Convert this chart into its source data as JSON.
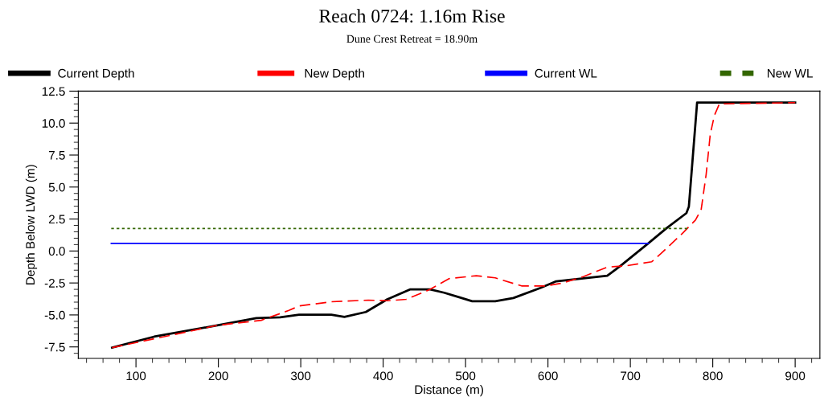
{
  "chart_data": {
    "type": "line",
    "title": "Reach 0724: 1.16m Rise",
    "subtitle": "Dune Crest Retreat = 18.90m",
    "xlabel": "Distance (m)",
    "ylabel": "Depth Below LWD (m)",
    "xlim": [
      30,
      930
    ],
    "ylim": [
      -8.4,
      12.5
    ],
    "xticks": [
      100,
      200,
      300,
      400,
      500,
      600,
      700,
      800,
      900
    ],
    "yticks": [
      {
        "value": 12.5,
        "label": "12.5"
      },
      {
        "value": 10,
        "label": "10.0"
      },
      {
        "value": 7.5,
        "label": "7.5"
      },
      {
        "value": 5,
        "label": "5.0"
      },
      {
        "value": 2.5,
        "label": "2.5"
      },
      {
        "value": 0,
        "label": "0.0"
      },
      {
        "value": -2.5,
        "label": "-2.5"
      },
      {
        "value": -5,
        "label": "-5.0"
      },
      {
        "value": -7.5,
        "label": "-7.5"
      }
    ],
    "legend": "top",
    "grid": false,
    "series": [
      {
        "name": "Current Depth",
        "color": "#000000",
        "line_style": "solid",
        "x": [
          71,
          122,
          200,
          246,
          275,
          298,
          337,
          353,
          379,
          405,
          433,
          457,
          474,
          493,
          508,
          536,
          558,
          591,
          610,
          672,
          688,
          722,
          744,
          768,
          771,
          781,
          900
        ],
        "values": [
          -7.56,
          -6.7,
          -5.8,
          -5.25,
          -5.19,
          -4.98,
          -4.98,
          -5.15,
          -4.77,
          -3.78,
          -3.0,
          -3.0,
          -3.26,
          -3.63,
          -3.93,
          -3.93,
          -3.68,
          -2.88,
          -2.37,
          -1.93,
          -1.16,
          0.61,
          1.79,
          2.96,
          3.47,
          11.6,
          11.6
        ]
      },
      {
        "name": "New Depth",
        "color": "#ff0000",
        "line_style": "dashed",
        "x": [
          71,
          200,
          252,
          285,
          298,
          337,
          382,
          405,
          428,
          444,
          457,
          480,
          513,
          536,
          568,
          597,
          617,
          643,
          672,
          695,
          726,
          737,
          763,
          779,
          786,
          792,
          797,
          802,
          808,
          900
        ],
        "values": [
          -7.56,
          -5.8,
          -5.42,
          -4.66,
          -4.3,
          -3.97,
          -3.84,
          -3.89,
          -3.78,
          -3.36,
          -3.0,
          -2.16,
          -1.93,
          -2.1,
          -2.73,
          -2.73,
          -2.52,
          -2.0,
          -1.26,
          -1.16,
          -0.84,
          -0.21,
          1.37,
          2.42,
          3.26,
          6.0,
          9.14,
          10.6,
          11.5,
          11.6
        ]
      },
      {
        "name": "Current WL",
        "color": "#0000ff",
        "line_style": "solid",
        "x": [
          70,
          722
        ],
        "values": [
          0.6,
          0.6
        ]
      },
      {
        "name": "New WL",
        "color": "#336600",
        "line_style": "dotted",
        "x": [
          70,
          770
        ],
        "values": [
          1.76,
          1.76
        ]
      }
    ]
  }
}
